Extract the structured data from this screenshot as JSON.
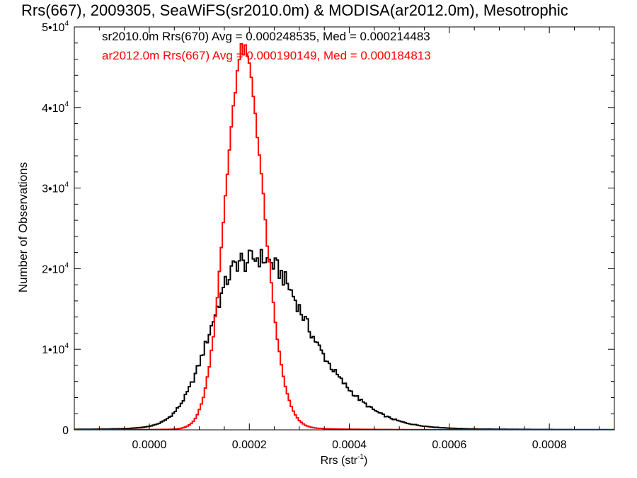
{
  "chart_data": {
    "type": "histogram",
    "title": "Rrs(667), 2009305, SeaWiFS(sr2010.0m) & MODISA(ar2012.0m), Mesotrophic",
    "xlabel": "Rrs (str",
    "xlabel_sup": "-1",
    "xlabel_close": ")",
    "ylabel": "Number of Observations",
    "xlim": [
      -0.00015,
      0.00093
    ],
    "ylim": [
      0,
      50000
    ],
    "grid": false,
    "x_ticks": [
      0.0,
      0.0002,
      0.0004,
      0.0006,
      0.0008
    ],
    "x_tick_labels": [
      "0.0000",
      "0.0002",
      "0.0004",
      "0.0006",
      "0.0008"
    ],
    "y_ticks": [
      {
        "value": 0,
        "base": "0",
        "exp": ""
      },
      {
        "value": 10000,
        "base": "1•10",
        "exp": "4"
      },
      {
        "value": 20000,
        "base": "2•10",
        "exp": "4"
      },
      {
        "value": 30000,
        "base": "3•10",
        "exp": "4"
      },
      {
        "value": 40000,
        "base": "4•10",
        "exp": "4"
      },
      {
        "value": 50000,
        "base": "5•10",
        "exp": "4"
      }
    ],
    "legend_placement": "top-left",
    "series": [
      {
        "name": "sr2010.0m Rrs(670)",
        "color": "#000000",
        "stats_text": "sr2010.0m Rrs(670) Avg = 0.000248535, Med = 0.000214483",
        "curve": {
          "peak_x": 0.000185,
          "peak_y": 19900,
          "sigma_left": 6.2e-05,
          "sigma_right": 0.000125,
          "tail_amp": 1800,
          "tail_scale": 0.00016,
          "bump_x": 0.00026,
          "bump_y": 2000,
          "bump_sigma": 4e-05
        }
      },
      {
        "name": "ar2012.0m Rrs(667)",
        "color": "#ff0000",
        "stats_text": "ar2012.0m Rrs(667) Avg = 0.000190149, Med = 0.000184813",
        "curve": {
          "peak_x": 0.000188,
          "peak_y": 46800,
          "sigma_left": 3.6e-05,
          "sigma_right": 4e-05,
          "tail_amp": 700,
          "tail_scale": 0.0001,
          "bump_x": 0.00026,
          "bump_y": 0,
          "bump_sigma": 4e-05
        }
      }
    ]
  }
}
